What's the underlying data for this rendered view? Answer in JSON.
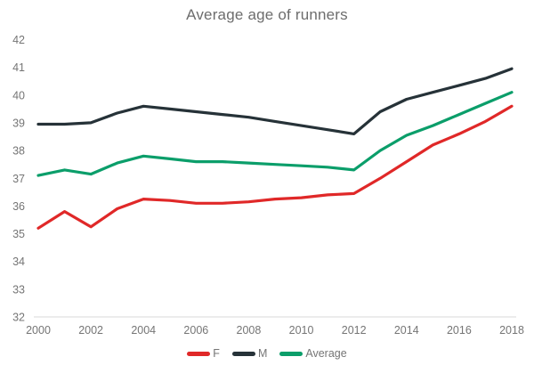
{
  "chart_data": {
    "type": "line",
    "title": "Average age of runners",
    "x": [
      2000,
      2001,
      2002,
      2003,
      2004,
      2005,
      2006,
      2007,
      2008,
      2009,
      2010,
      2011,
      2012,
      2013,
      2014,
      2015,
      2016,
      2017,
      2018
    ],
    "series": [
      {
        "name": "F",
        "color": "#e02828",
        "values": [
          35.2,
          35.8,
          35.25,
          35.9,
          36.25,
          36.2,
          36.1,
          36.1,
          36.15,
          36.25,
          36.3,
          36.4,
          36.45,
          37.0,
          37.6,
          38.2,
          38.6,
          39.05,
          39.6
        ]
      },
      {
        "name": "M",
        "color": "#263238",
        "values": [
          38.95,
          38.95,
          39.0,
          39.35,
          39.6,
          39.5,
          39.4,
          39.3,
          39.2,
          39.05,
          38.9,
          38.75,
          38.6,
          39.4,
          39.85,
          40.1,
          40.35,
          40.6,
          40.95
        ]
      },
      {
        "name": "Average",
        "color": "#0b9e6a",
        "values": [
          37.1,
          37.3,
          37.15,
          37.55,
          37.8,
          37.7,
          37.6,
          37.6,
          37.55,
          37.5,
          37.45,
          37.4,
          37.3,
          38.0,
          38.55,
          38.9,
          39.3,
          39.7,
          40.1
        ]
      }
    ],
    "ylim": [
      32,
      42
    ],
    "y_tick_step": 1,
    "x_tick_step": 2,
    "y_ticks": [
      32,
      33,
      34,
      35,
      36,
      37,
      38,
      39,
      40,
      41,
      42
    ],
    "x_ticks": [
      2000,
      2002,
      2004,
      2006,
      2008,
      2010,
      2012,
      2014,
      2016,
      2018
    ],
    "grid": false,
    "legend_position": "bottom",
    "colors": {
      "axis_line": "#d9d9d9",
      "tick_label": "#757575",
      "title": "#6d6d6d",
      "legend_label": "#757575"
    }
  }
}
